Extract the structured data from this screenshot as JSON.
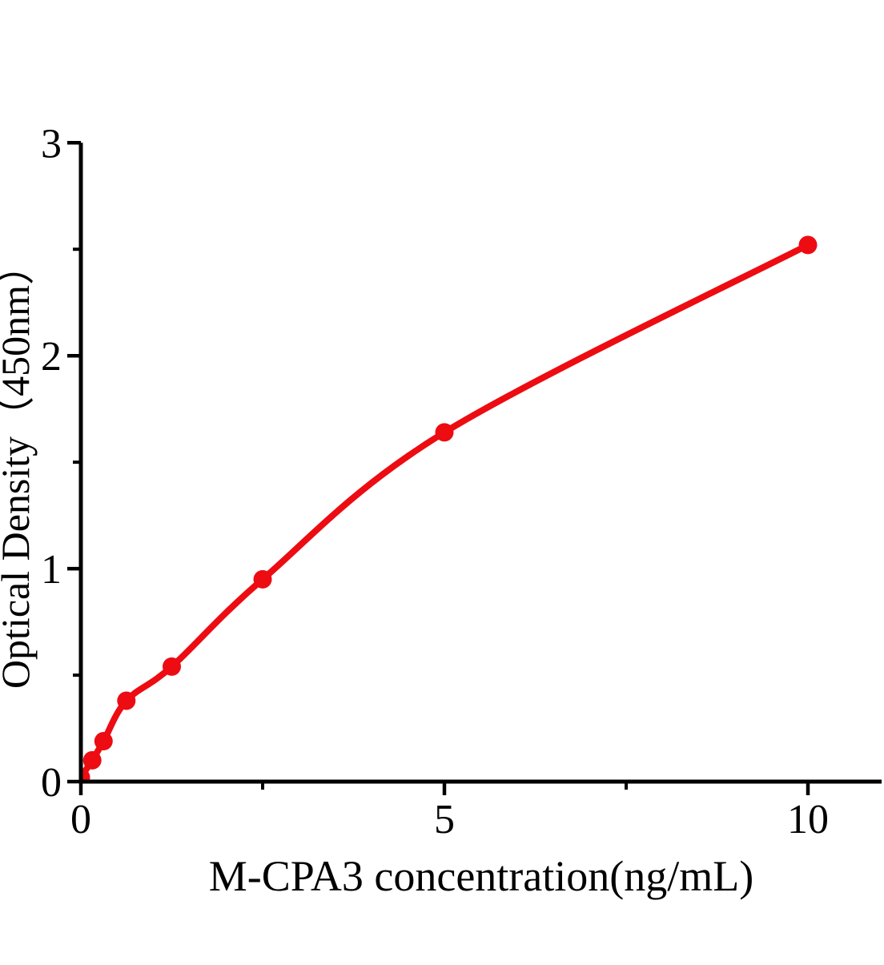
{
  "chart_data": {
    "type": "line",
    "title": "",
    "xlabel": "M-CPA3 concentration(ng/mL)",
    "ylabel": "Optical Density（450nm）",
    "x": [
      0,
      0.156,
      0.312,
      0.625,
      1.25,
      2.5,
      5,
      10
    ],
    "y": [
      0.02,
      0.1,
      0.19,
      0.38,
      0.54,
      0.95,
      1.64,
      2.52
    ],
    "xlim": [
      0,
      11
    ],
    "ylim": [
      0,
      3
    ],
    "x_major_ticks": [
      0,
      5,
      10
    ],
    "x_minor_ticks": [
      2.5,
      7.5
    ],
    "y_major_ticks": [
      0,
      1,
      2,
      3
    ],
    "y_minor_ticks": [
      0.5,
      1.5,
      2.5
    ],
    "grid": false,
    "legend": "none",
    "marker_shape": "filled-circle",
    "colors": {
      "curve": "#ec0c12",
      "marker": "#ec0c12",
      "axis": "#000000",
      "text": "#000000",
      "background": "#ffffff"
    }
  }
}
